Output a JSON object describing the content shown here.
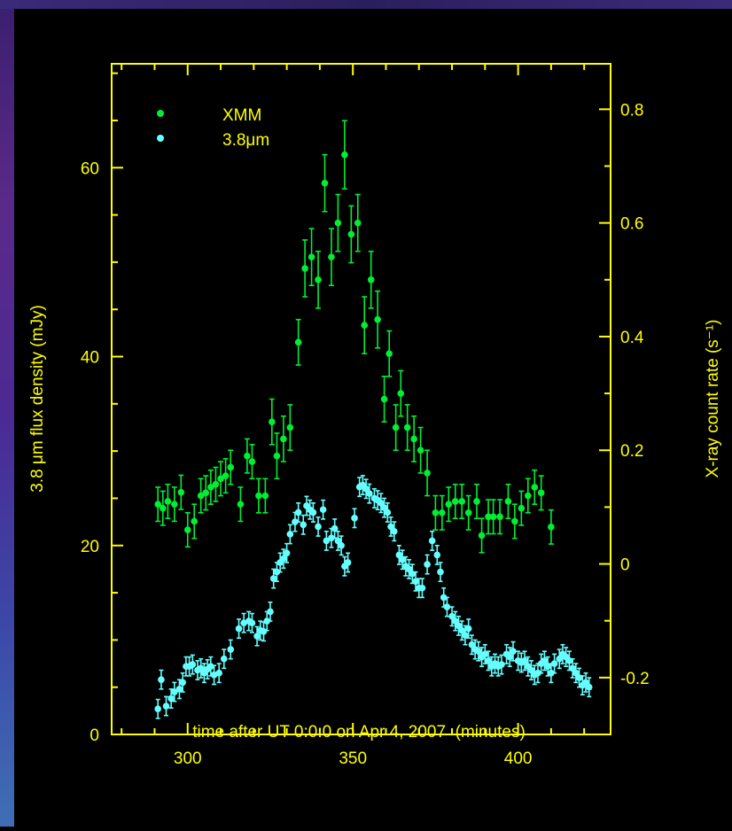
{
  "colors": {
    "axis": "#ffff00",
    "xmm": "#00ee33",
    "ir": "#66ffff",
    "background": "#000000"
  },
  "chart_data": {
    "type": "scatter",
    "xlabel": "time after UT 0:0:0 on Apr 4, 2007  (minutes)",
    "ylabel_left": "3.8 μm flux density (mJy)",
    "ylabel_right": "X-ray count rate (s⁻¹)",
    "xlim": [
      277,
      428
    ],
    "ylim_left": [
      0,
      71
    ],
    "ylim_right": [
      -0.3,
      0.88
    ],
    "x_ticks": [
      300,
      350,
      400
    ],
    "y_left_ticks": [
      0,
      20,
      40,
      60
    ],
    "y_right_ticks": [
      -0.2,
      0,
      0.2,
      0.4,
      0.6,
      0.8
    ],
    "y_right_tick_labels": [
      "-0.2",
      "0",
      "0.2",
      "0.4",
      "0.6",
      "0.8"
    ],
    "legend_position": "top-left",
    "series": [
      {
        "name": "XMM",
        "axis": "right",
        "points": [
          [
            291,
            0.105,
            0.03
          ],
          [
            292.5,
            0.098,
            0.03
          ],
          [
            294,
            0.11,
            0.03
          ],
          [
            296,
            0.105,
            0.03
          ],
          [
            298,
            0.126,
            0.03
          ],
          [
            300,
            0.06,
            0.03
          ],
          [
            302,
            0.075,
            0.03
          ],
          [
            304,
            0.12,
            0.03
          ],
          [
            305.5,
            0.125,
            0.03
          ],
          [
            307,
            0.135,
            0.03
          ],
          [
            308.5,
            0.14,
            0.03
          ],
          [
            310,
            0.15,
            0.03
          ],
          [
            311.5,
            0.155,
            0.03
          ],
          [
            313,
            0.17,
            0.03
          ],
          [
            316,
            0.105,
            0.03
          ],
          [
            318,
            0.19,
            0.03
          ],
          [
            319.5,
            0.18,
            0.03
          ],
          [
            321.5,
            0.12,
            0.03
          ],
          [
            323.5,
            0.12,
            0.03
          ],
          [
            325.5,
            0.25,
            0.04
          ],
          [
            327,
            0.19,
            0.04
          ],
          [
            329,
            0.22,
            0.04
          ],
          [
            331,
            0.24,
            0.04
          ],
          [
            333.5,
            0.39,
            0.04
          ],
          [
            335.5,
            0.52,
            0.05
          ],
          [
            337.5,
            0.54,
            0.05
          ],
          [
            339.5,
            0.5,
            0.05
          ],
          [
            341.5,
            0.67,
            0.05
          ],
          [
            343.5,
            0.54,
            0.05
          ],
          [
            345.5,
            0.6,
            0.05
          ],
          [
            347.5,
            0.72,
            0.06
          ],
          [
            349.5,
            0.58,
            0.05
          ],
          [
            351.5,
            0.6,
            0.05
          ],
          [
            353.5,
            0.42,
            0.05
          ],
          [
            355.5,
            0.5,
            0.05
          ],
          [
            357.5,
            0.43,
            0.05
          ],
          [
            359.5,
            0.29,
            0.04
          ],
          [
            361,
            0.37,
            0.04
          ],
          [
            363,
            0.24,
            0.04
          ],
          [
            364.5,
            0.3,
            0.04
          ],
          [
            366.5,
            0.24,
            0.04
          ],
          [
            368.5,
            0.22,
            0.04
          ],
          [
            370.5,
            0.2,
            0.04
          ],
          [
            372.5,
            0.16,
            0.04
          ],
          [
            375,
            0.09,
            0.03
          ],
          [
            377,
            0.09,
            0.03
          ],
          [
            379,
            0.105,
            0.03
          ],
          [
            381,
            0.11,
            0.03
          ],
          [
            383,
            0.11,
            0.03
          ],
          [
            385,
            0.09,
            0.03
          ],
          [
            387.5,
            0.11,
            0.03
          ],
          [
            389,
            0.05,
            0.03
          ],
          [
            391,
            0.083,
            0.03
          ],
          [
            392.5,
            0.083,
            0.03
          ],
          [
            394.5,
            0.083,
            0.03
          ],
          [
            397,
            0.11,
            0.03
          ],
          [
            399,
            0.075,
            0.03
          ],
          [
            401,
            0.098,
            0.03
          ],
          [
            403,
            0.12,
            0.03
          ],
          [
            405,
            0.135,
            0.03
          ],
          [
            407,
            0.125,
            0.03
          ],
          [
            410,
            0.065,
            0.03
          ]
        ]
      },
      {
        "name": "3.8μm",
        "axis": "left",
        "points": [
          [
            291,
            2.7,
            1.0
          ],
          [
            292,
            5.8,
            1.0
          ],
          [
            293.5,
            3.0,
            1.0
          ],
          [
            295,
            3.8,
            1.0
          ],
          [
            296,
            4.5,
            1.0
          ],
          [
            297.5,
            4.8,
            1.0
          ],
          [
            298.5,
            5.5,
            1.0
          ],
          [
            299.5,
            7.2,
            1.0
          ],
          [
            300.5,
            7.2,
            1.0
          ],
          [
            301.5,
            7.4,
            1.0
          ],
          [
            303,
            6.8,
            1.0
          ],
          [
            304,
            7.0,
            1.0
          ],
          [
            305,
            6.5,
            1.0
          ],
          [
            306,
            6.9,
            1.0
          ],
          [
            307,
            7.2,
            1.0
          ],
          [
            308,
            6.3,
            1.0
          ],
          [
            309.5,
            6.5,
            1.0
          ],
          [
            311,
            8.0,
            1.0
          ],
          [
            313,
            9.0,
            1.0
          ],
          [
            315.5,
            11.2,
            1.0
          ],
          [
            317,
            11.8,
            1.0
          ],
          [
            318.5,
            12.0,
            1.0
          ],
          [
            319.5,
            11.8,
            1.0
          ],
          [
            321,
            10.4,
            1.0
          ],
          [
            322,
            11.0,
            1.0
          ],
          [
            323,
            10.9,
            1.0
          ],
          [
            324,
            12.0,
            1.0
          ],
          [
            325,
            13.0,
            1.0
          ],
          [
            326,
            16.5,
            1.0
          ],
          [
            327,
            17.2,
            1.0
          ],
          [
            328,
            18.2,
            1.0
          ],
          [
            329,
            18.6,
            1.0
          ],
          [
            330,
            19.2,
            1.0
          ],
          [
            331,
            21.2,
            1.0
          ],
          [
            332.5,
            22.5,
            1.0
          ],
          [
            333.5,
            23.5,
            1.0
          ],
          [
            335,
            22.2,
            1.0
          ],
          [
            336,
            24.2,
            1.0
          ],
          [
            337,
            23.8,
            1.0
          ],
          [
            338,
            23.5,
            1.0
          ],
          [
            339.5,
            22.0,
            1.0
          ],
          [
            341,
            23.8,
            1.0
          ],
          [
            342,
            20.5,
            1.0
          ],
          [
            343.5,
            20.8,
            1.0
          ],
          [
            344.5,
            21.8,
            1.0
          ],
          [
            345.5,
            20.5,
            1.0
          ],
          [
            346.5,
            20.0,
            1.0
          ],
          [
            347.5,
            17.8,
            1.0
          ],
          [
            348.5,
            18.2,
            1.0
          ],
          [
            350.5,
            22.9,
            1.0
          ],
          [
            352,
            26.2,
            1.0
          ],
          [
            353,
            26.4,
            1.0
          ],
          [
            354,
            26.0,
            1.0
          ],
          [
            355,
            25.5,
            1.0
          ],
          [
            356.5,
            25.0,
            1.0
          ],
          [
            357.5,
            24.8,
            1.0
          ],
          [
            358.5,
            24.5,
            1.0
          ],
          [
            359.5,
            24.0,
            1.0
          ],
          [
            360.5,
            23.5,
            1.0
          ],
          [
            361.5,
            22.0,
            1.0
          ],
          [
            362.5,
            21.5,
            1.0
          ],
          [
            364,
            19.0,
            1.0
          ],
          [
            365,
            18.5,
            1.0
          ],
          [
            366,
            17.8,
            1.0
          ],
          [
            367,
            17.5,
            1.0
          ],
          [
            368,
            17.0,
            1.0
          ],
          [
            369,
            16.2,
            1.0
          ],
          [
            370,
            15.5,
            1.0
          ],
          [
            371,
            15.5,
            1.0
          ],
          [
            372.5,
            18.0,
            1.0
          ],
          [
            374,
            20.5,
            1.0
          ],
          [
            375.5,
            19.0,
            1.0
          ],
          [
            376.5,
            17.2,
            1.0
          ],
          [
            377.5,
            14.5,
            1.0
          ],
          [
            378.5,
            13.5,
            1.0
          ],
          [
            380,
            12.5,
            1.0
          ],
          [
            381,
            12.0,
            1.0
          ],
          [
            382,
            11.5,
            1.0
          ],
          [
            383,
            11.0,
            1.0
          ],
          [
            384,
            10.5,
            1.0
          ],
          [
            385,
            11.2,
            1.0
          ],
          [
            386,
            9.5,
            1.0
          ],
          [
            387,
            9.0,
            1.0
          ],
          [
            388,
            8.8,
            1.0
          ],
          [
            389,
            8.2,
            1.0
          ],
          [
            390,
            8.5,
            1.0
          ],
          [
            391,
            7.8,
            1.0
          ],
          [
            392,
            7.2,
            1.0
          ],
          [
            393,
            7.5,
            1.0
          ],
          [
            394,
            7.2,
            1.0
          ],
          [
            395,
            7.4,
            1.0
          ],
          [
            396.5,
            8.5,
            1.0
          ],
          [
            397.5,
            8.2,
            1.0
          ],
          [
            398.5,
            8.8,
            1.0
          ],
          [
            400,
            7.8,
            1.0
          ],
          [
            401,
            7.6,
            1.0
          ],
          [
            402,
            7.8,
            1.0
          ],
          [
            403,
            7.2,
            1.0
          ],
          [
            404,
            6.8,
            1.0
          ],
          [
            405,
            6.3,
            1.0
          ],
          [
            406,
            6.5,
            1.0
          ],
          [
            407,
            7.5,
            1.0
          ],
          [
            408,
            7.8,
            1.0
          ],
          [
            409,
            7.2,
            1.0
          ],
          [
            410,
            6.5,
            1.0
          ],
          [
            411,
            7.5,
            1.0
          ],
          [
            412.5,
            8.0,
            1.0
          ],
          [
            413.5,
            8.5,
            1.0
          ],
          [
            414.5,
            8.2,
            1.0
          ],
          [
            415.5,
            7.8,
            1.0
          ],
          [
            416.5,
            7.0,
            1.0
          ],
          [
            417.5,
            6.5,
            1.0
          ],
          [
            418.5,
            6.0,
            1.0
          ],
          [
            419.5,
            5.2,
            1.0
          ],
          [
            420.5,
            5.5,
            1.0
          ],
          [
            421.5,
            5.0,
            1.0
          ]
        ]
      }
    ]
  }
}
